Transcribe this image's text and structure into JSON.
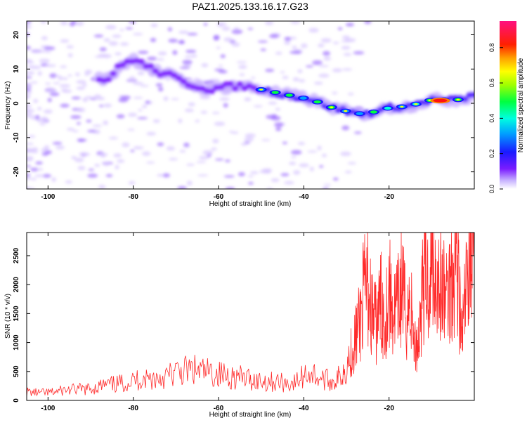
{
  "figure": {
    "title": "PAZ1.2025.133.16.17.G23"
  },
  "chart_data": [
    {
      "type": "heatmap",
      "panel": "top",
      "xlabel": "Height of straight line (km)",
      "ylabel": "Frequency (Hz)",
      "xlim": [
        -105,
        0
      ],
      "ylim": [
        -25,
        24
      ],
      "xticks": [
        -100,
        -80,
        -60,
        -40,
        -20
      ],
      "yticks": [
        -20,
        -10,
        0,
        10,
        20
      ],
      "ridge": {
        "description_points_x": [
          -86,
          -83,
          -80,
          -77,
          -74,
          -71,
          -68,
          -65,
          -62,
          -58,
          -54,
          -50,
          -46,
          -42,
          -38,
          -34,
          -31,
          -28,
          -25,
          -22,
          -19,
          -16,
          -13,
          -10,
          -7,
          -4,
          -1
        ],
        "description_points_y": [
          7,
          11,
          13,
          11,
          9,
          8,
          6,
          5,
          4,
          5,
          5,
          4,
          3,
          2,
          1,
          -1,
          -2,
          -3,
          -3,
          -2,
          -1,
          -1,
          0,
          1,
          1,
          1,
          2
        ]
      },
      "colorbar": {
        "label": "Normalized spectral amplitude",
        "range": [
          0.0,
          0.95
        ],
        "ticks": [
          0.0,
          0.2,
          0.4,
          0.6,
          0.8
        ],
        "colormap": "rainbow (white-violet-blue-cyan-green-yellow-orange-red-magenta)"
      },
      "grid": false
    },
    {
      "type": "line",
      "panel": "bottom",
      "xlabel": "Height of straight line (km)",
      "ylabel": "SNR (10 * v/v)",
      "xlim": [
        -105,
        0
      ],
      "ylim": [
        0,
        2900
      ],
      "xticks": [
        -100,
        -80,
        -60,
        -40,
        -20
      ],
      "yticks": [
        0,
        500,
        1000,
        1500,
        2000,
        2500
      ],
      "color": "#ff2a2a",
      "series": [
        {
          "x": [
            -105,
            -102,
            -99,
            -96,
            -93,
            -90,
            -87,
            -84,
            -81,
            -78,
            -75,
            -72,
            -69,
            -66,
            -63,
            -60,
            -57,
            -54,
            -51,
            -48,
            -45,
            -42,
            -39,
            -36,
            -33,
            -31,
            -29,
            -28,
            -27,
            -26,
            -25,
            -24,
            -23,
            -22,
            -21,
            -20,
            -19,
            -18,
            -17,
            -16,
            -15,
            -14,
            -13,
            -12,
            -11,
            -10,
            -9,
            -8,
            -7,
            -6,
            -5,
            -4,
            -3,
            -2,
            -1,
            0
          ],
          "values": [
            150,
            130,
            140,
            180,
            190,
            200,
            260,
            280,
            320,
            380,
            380,
            420,
            500,
            520,
            480,
            450,
            420,
            380,
            350,
            330,
            310,
            300,
            500,
            380,
            320,
            450,
            800,
            1050,
            1300,
            1800,
            2000,
            1500,
            1300,
            1700,
            1400,
            1900,
            1500,
            1600,
            2000,
            1400,
            1700,
            900,
            1100,
            2100,
            2000,
            2400,
            2200,
            2000,
            1800,
            1900,
            2300,
            2500,
            1000,
            1800,
            2600,
            2850
          ]
        }
      ],
      "grid": false
    }
  ]
}
